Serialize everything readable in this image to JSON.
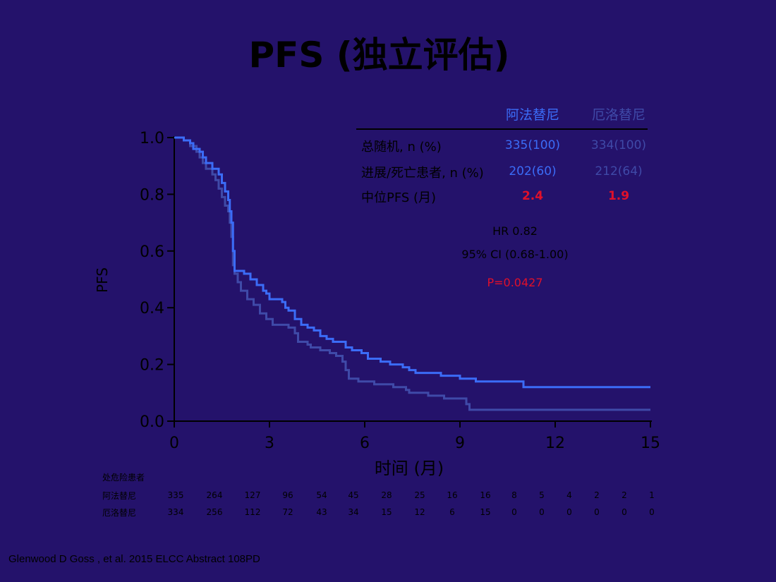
{
  "title": "PFS (独立评估)",
  "citation": "Glenwood D Goss , et al. 2015 ELCC Abstract 108PD",
  "colors": {
    "background": "#24126b",
    "afatinib": "#3b6cf7",
    "erlotinib": "#3f4aa8",
    "highlight": "#e0102a"
  },
  "table": {
    "headers": [
      "阿法替尼",
      "厄洛替尼"
    ],
    "rows": [
      {
        "label": "总随机, n (%)",
        "values": [
          "335(100)",
          "334(100)"
        ]
      },
      {
        "label": "进展/死亡患者, n (%)",
        "values": [
          "202(60)",
          "212(64)"
        ]
      },
      {
        "label": "中位PFS (月)",
        "values": [
          "2.4",
          "1.9"
        ]
      }
    ]
  },
  "stats": {
    "hr": "HR 0.82",
    "ci": "95% CI (0.68-1.00)",
    "p": "P=0.0427"
  },
  "risk_table": {
    "title": "处危险患者",
    "rows": [
      {
        "label": "阿法替尼",
        "values": [
          "335",
          "264",
          "127",
          "96",
          "54",
          "45",
          "28",
          "25",
          "16",
          "16",
          "8",
          "5",
          "4",
          "2",
          "2",
          "1"
        ]
      },
      {
        "label": "厄洛替尼",
        "values": [
          "334",
          "256",
          "112",
          "72",
          "43",
          "34",
          "15",
          "12",
          "6",
          "15",
          "0",
          "0",
          "0",
          "0",
          "0",
          "0"
        ]
      }
    ]
  },
  "chart_data": {
    "type": "line",
    "xlabel": "时间 (月)",
    "ylabel": "PFS",
    "xlim": [
      0,
      15
    ],
    "ylim": [
      0,
      1
    ],
    "xticks": [
      "0",
      "3",
      "6",
      "9",
      "12",
      "15"
    ],
    "yticks": [
      "0.0",
      "0.2",
      "0.4",
      "0.6",
      "0.8",
      "1.0"
    ],
    "series": [
      {
        "name": "阿法替尼",
        "color": "#3b6cf7",
        "points": [
          [
            0,
            1.0
          ],
          [
            0.3,
            0.99
          ],
          [
            0.5,
            0.98
          ],
          [
            0.6,
            0.96
          ],
          [
            0.8,
            0.95
          ],
          [
            0.9,
            0.93
          ],
          [
            1.0,
            0.91
          ],
          [
            1.2,
            0.89
          ],
          [
            1.4,
            0.87
          ],
          [
            1.5,
            0.84
          ],
          [
            1.6,
            0.81
          ],
          [
            1.7,
            0.78
          ],
          [
            1.75,
            0.74
          ],
          [
            1.8,
            0.7
          ],
          [
            1.85,
            0.6
          ],
          [
            1.9,
            0.53
          ],
          [
            2.2,
            0.52
          ],
          [
            2.4,
            0.5
          ],
          [
            2.6,
            0.48
          ],
          [
            2.8,
            0.46
          ],
          [
            2.9,
            0.45
          ],
          [
            3.0,
            0.43
          ],
          [
            3.4,
            0.42
          ],
          [
            3.5,
            0.4
          ],
          [
            3.6,
            0.39
          ],
          [
            3.8,
            0.36
          ],
          [
            4.0,
            0.34
          ],
          [
            4.2,
            0.33
          ],
          [
            4.4,
            0.32
          ],
          [
            4.6,
            0.3
          ],
          [
            4.8,
            0.29
          ],
          [
            5.0,
            0.28
          ],
          [
            5.4,
            0.26
          ],
          [
            5.6,
            0.25
          ],
          [
            5.9,
            0.24
          ],
          [
            6.1,
            0.22
          ],
          [
            6.5,
            0.21
          ],
          [
            6.8,
            0.2
          ],
          [
            7.2,
            0.19
          ],
          [
            7.4,
            0.18
          ],
          [
            7.6,
            0.17
          ],
          [
            8.4,
            0.16
          ],
          [
            9.0,
            0.15
          ],
          [
            9.5,
            0.14
          ],
          [
            11.0,
            0.12
          ],
          [
            15.0,
            0.12
          ]
        ]
      },
      {
        "name": "厄洛替尼",
        "color": "#3f4aa8",
        "points": [
          [
            0,
            1.0
          ],
          [
            0.3,
            0.99
          ],
          [
            0.5,
            0.97
          ],
          [
            0.7,
            0.95
          ],
          [
            0.8,
            0.93
          ],
          [
            0.9,
            0.91
          ],
          [
            1.0,
            0.89
          ],
          [
            1.2,
            0.87
          ],
          [
            1.3,
            0.85
          ],
          [
            1.4,
            0.82
          ],
          [
            1.5,
            0.79
          ],
          [
            1.6,
            0.76
          ],
          [
            1.7,
            0.74
          ],
          [
            1.75,
            0.7
          ],
          [
            1.8,
            0.65
          ],
          [
            1.85,
            0.55
          ],
          [
            1.9,
            0.52
          ],
          [
            2.0,
            0.49
          ],
          [
            2.1,
            0.46
          ],
          [
            2.3,
            0.43
          ],
          [
            2.5,
            0.41
          ],
          [
            2.7,
            0.38
          ],
          [
            2.9,
            0.36
          ],
          [
            3.1,
            0.34
          ],
          [
            3.6,
            0.33
          ],
          [
            3.8,
            0.31
          ],
          [
            3.9,
            0.28
          ],
          [
            4.2,
            0.27
          ],
          [
            4.3,
            0.26
          ],
          [
            4.6,
            0.25
          ],
          [
            4.9,
            0.24
          ],
          [
            5.1,
            0.23
          ],
          [
            5.3,
            0.21
          ],
          [
            5.4,
            0.18
          ],
          [
            5.5,
            0.15
          ],
          [
            5.8,
            0.14
          ],
          [
            6.3,
            0.13
          ],
          [
            6.9,
            0.12
          ],
          [
            7.3,
            0.11
          ],
          [
            7.4,
            0.1
          ],
          [
            8.0,
            0.09
          ],
          [
            8.5,
            0.08
          ],
          [
            9.2,
            0.06
          ],
          [
            9.3,
            0.04
          ],
          [
            15.0,
            0.04
          ]
        ]
      }
    ]
  }
}
